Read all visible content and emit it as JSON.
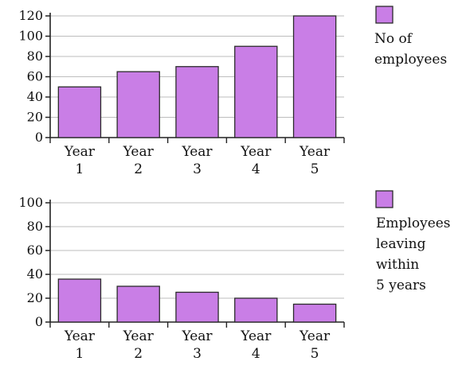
{
  "chart_data": [
    {
      "type": "bar",
      "categories": [
        "Year\n1",
        "Year\n2",
        "Year\n3",
        "Year\n4",
        "Year\n5"
      ],
      "series": [
        {
          "name": "No of employees",
          "values": [
            50,
            65,
            70,
            90,
            120
          ]
        }
      ],
      "ylim": [
        0,
        120
      ],
      "yticks": [
        0,
        20,
        40,
        60,
        80,
        100,
        120
      ],
      "grid": true,
      "legend_position": "right",
      "legend_text": [
        "No of",
        "employees"
      ],
      "colors": {
        "bar": "#c97ee6",
        "bar_edge": "#2b2b2b",
        "grid": "#bdbdbd"
      }
    },
    {
      "type": "bar",
      "categories": [
        "Year\n1",
        "Year\n2",
        "Year\n3",
        "Year\n4",
        "Year\n5"
      ],
      "series": [
        {
          "name": "Employees leaving within 5 years",
          "values": [
            36,
            30,
            25,
            20,
            15
          ]
        }
      ],
      "ylim": [
        0,
        100
      ],
      "yticks": [
        0,
        20,
        40,
        60,
        80,
        100
      ],
      "grid": true,
      "legend_position": "right",
      "legend_text": [
        "Employees",
        "leaving",
        "within",
        "5 years"
      ],
      "colors": {
        "bar": "#c97ee6",
        "bar_edge": "#2b2b2b",
        "grid": "#bdbdbd"
      }
    }
  ]
}
